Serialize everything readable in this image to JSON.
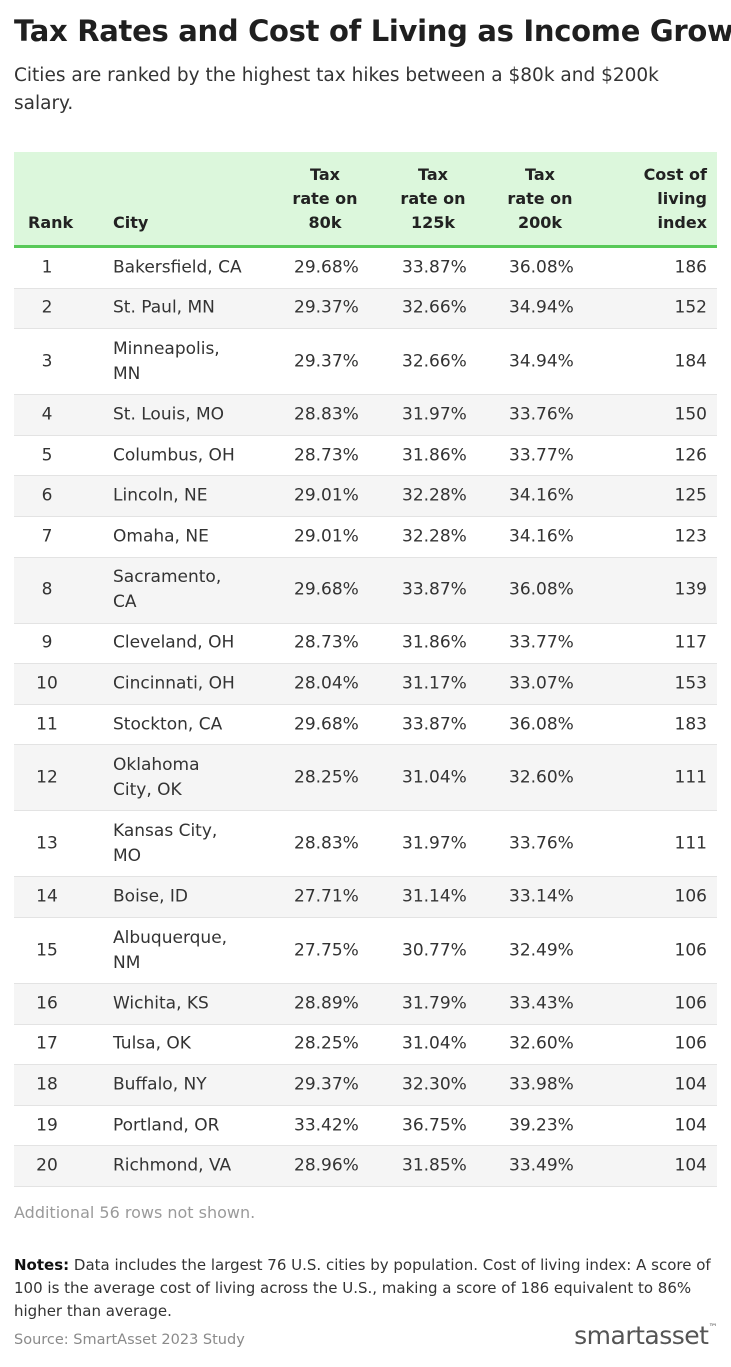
{
  "header": {
    "title": "Tax Rates and Cost of Living as Income Grows",
    "subtitle": "Cities are ranked by the highest tax hikes between a $80k and $200k salary."
  },
  "table": {
    "columns": [
      "Rank",
      "City",
      "Tax rate on 80k",
      "Tax rate on 125k",
      "Tax rate on 200k",
      "Cost of living index"
    ],
    "rows": [
      [
        1,
        "Bakersfield, CA",
        "29.68%",
        "33.87%",
        "36.08%",
        186
      ],
      [
        2,
        "St. Paul, MN",
        "29.37%",
        "32.66%",
        "34.94%",
        152
      ],
      [
        3,
        "Minneapolis, MN",
        "29.37%",
        "32.66%",
        "34.94%",
        184
      ],
      [
        4,
        "St. Louis, MO",
        "28.83%",
        "31.97%",
        "33.76%",
        150
      ],
      [
        5,
        "Columbus, OH",
        "28.73%",
        "31.86%",
        "33.77%",
        126
      ],
      [
        6,
        "Lincoln, NE",
        "29.01%",
        "32.28%",
        "34.16%",
        125
      ],
      [
        7,
        "Omaha, NE",
        "29.01%",
        "32.28%",
        "34.16%",
        123
      ],
      [
        8,
        "Sacramento, CA",
        "29.68%",
        "33.87%",
        "36.08%",
        139
      ],
      [
        9,
        "Cleveland, OH",
        "28.73%",
        "31.86%",
        "33.77%",
        117
      ],
      [
        10,
        "Cincinnati, OH",
        "28.04%",
        "31.17%",
        "33.07%",
        153
      ],
      [
        11,
        "Stockton, CA",
        "29.68%",
        "33.87%",
        "36.08%",
        183
      ],
      [
        12,
        "Oklahoma City, OK",
        "28.25%",
        "31.04%",
        "32.60%",
        111
      ],
      [
        13,
        "Kansas City, MO",
        "28.83%",
        "31.97%",
        "33.76%",
        111
      ],
      [
        14,
        "Boise, ID",
        "27.71%",
        "31.14%",
        "33.14%",
        106
      ],
      [
        15,
        "Albuquerque, NM",
        "27.75%",
        "30.77%",
        "32.49%",
        106
      ],
      [
        16,
        "Wichita, KS",
        "28.89%",
        "31.79%",
        "33.43%",
        106
      ],
      [
        17,
        "Tulsa, OK",
        "28.25%",
        "31.04%",
        "32.60%",
        106
      ],
      [
        18,
        "Buffalo, NY",
        "29.37%",
        "32.30%",
        "33.98%",
        104
      ],
      [
        19,
        "Portland, OR",
        "33.42%",
        "36.75%",
        "39.23%",
        104
      ],
      [
        20,
        "Richmond, VA",
        "28.96%",
        "31.85%",
        "33.49%",
        104
      ]
    ],
    "more": "Additional 56 rows not shown."
  },
  "footer": {
    "notes_label": "Notes:",
    "notes": "Data includes the largest 76 U.S. cities by population. Cost of living index: A score of 100 is the average cost of living across the U.S., making a score of 186 equivalent to 86% higher than average.",
    "source": "Source: SmartAsset 2023 Study",
    "logo": "smartasset",
    "logo_mark": "™"
  }
}
